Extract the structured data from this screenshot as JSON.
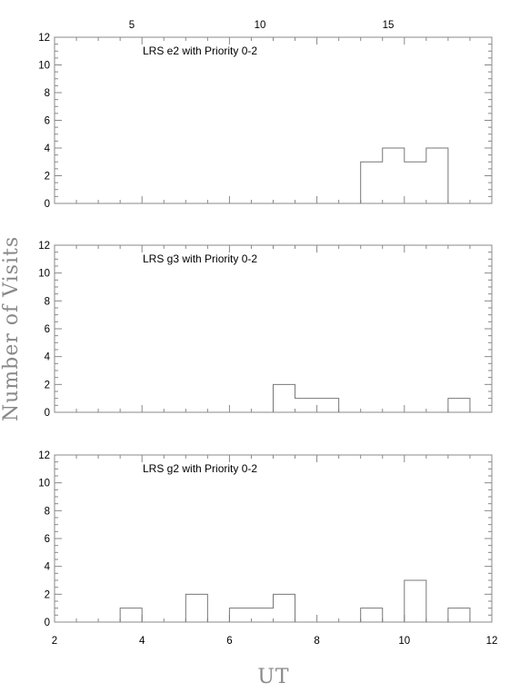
{
  "chart_data": {
    "type": "bar",
    "xlabel": "UT",
    "ylabel": "Number of Visits",
    "xlim": [
      2,
      12
    ],
    "xticks": [
      2,
      4,
      6,
      8,
      10,
      12
    ],
    "top_axis_ticks": [
      5,
      10,
      15
    ],
    "ylim": [
      0,
      12
    ],
    "yticks": [
      0,
      2,
      4,
      6,
      8,
      10,
      12
    ],
    "bin_width": 0.5,
    "panels": [
      {
        "label": "LRS e2 with Priority 0-2",
        "bins": [
          {
            "x": 9.25,
            "value": 3
          },
          {
            "x": 9.75,
            "value": 4
          },
          {
            "x": 10.25,
            "value": 3
          },
          {
            "x": 10.75,
            "value": 4
          }
        ]
      },
      {
        "label": "LRS g3 with Priority 0-2",
        "bins": [
          {
            "x": 7.25,
            "value": 2
          },
          {
            "x": 7.75,
            "value": 1
          },
          {
            "x": 8.25,
            "value": 1
          },
          {
            "x": 11.25,
            "value": 1
          }
        ]
      },
      {
        "label": "LRS g2 with Priority 0-2",
        "bins": [
          {
            "x": 3.75,
            "value": 1
          },
          {
            "x": 5.25,
            "value": 2
          },
          {
            "x": 6.25,
            "value": 1
          },
          {
            "x": 6.75,
            "value": 1
          },
          {
            "x": 7.25,
            "value": 2
          },
          {
            "x": 9.25,
            "value": 1
          },
          {
            "x": 10.25,
            "value": 3
          },
          {
            "x": 11.25,
            "value": 1
          }
        ]
      }
    ]
  }
}
